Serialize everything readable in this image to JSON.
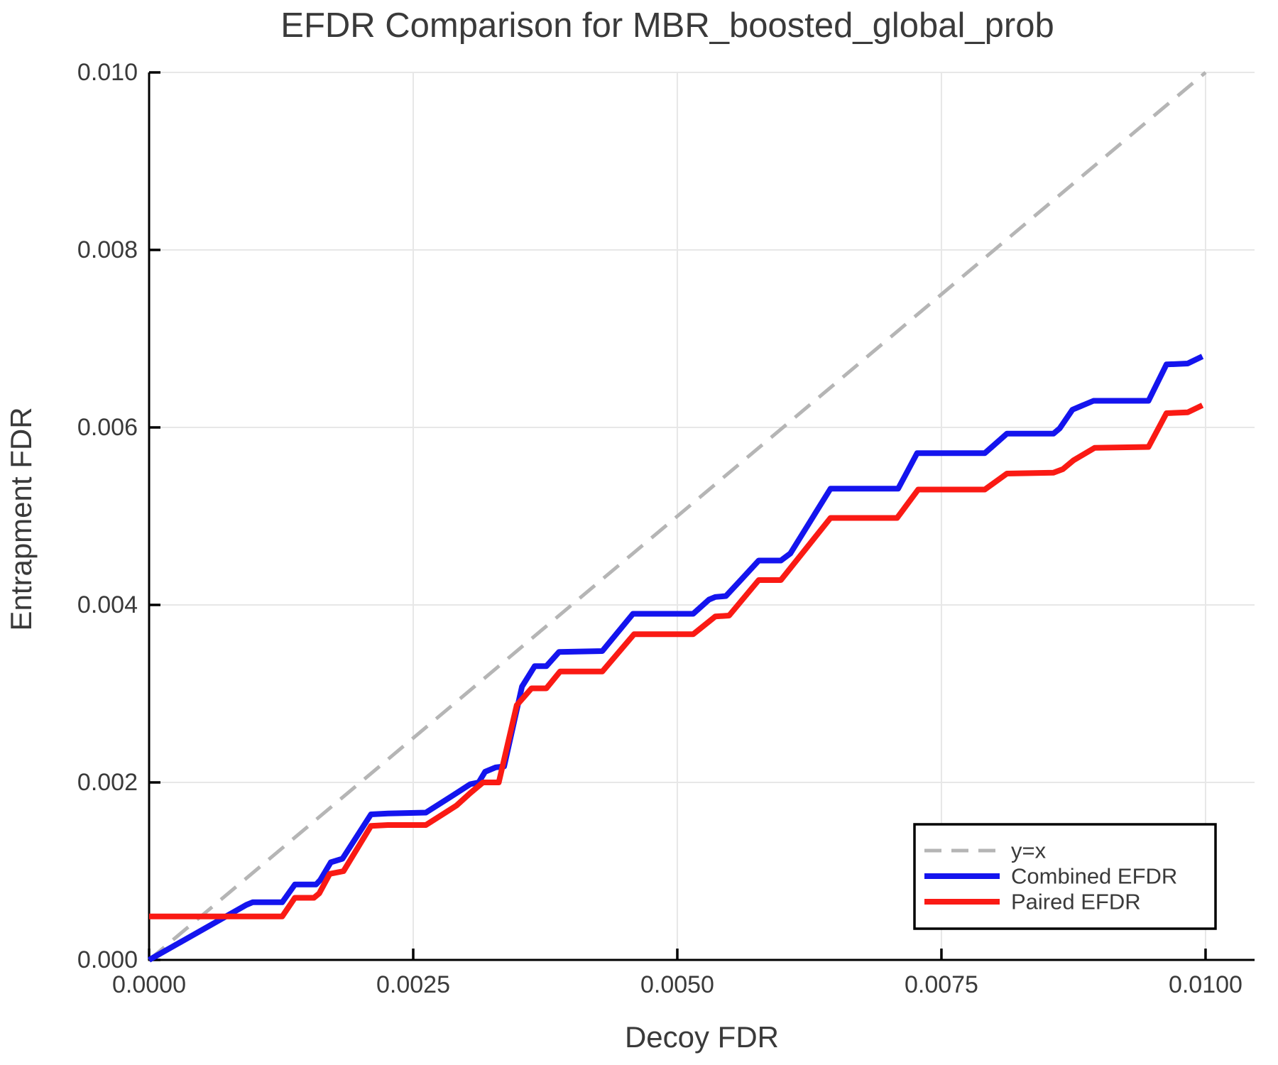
{
  "chart_data": {
    "type": "line",
    "title": "EFDR Comparison for MBR_boosted_global_prob",
    "xlabel": "Decoy FDR",
    "ylabel": "Entrapment FDR",
    "xlim": [
      0.0,
      0.010464
    ],
    "ylim": [
      0.0,
      0.01
    ],
    "grid": true,
    "legend_position": "bottom-right",
    "x_ticks": [
      {
        "v": 0.0,
        "label": "0.0000"
      },
      {
        "v": 0.0025,
        "label": "0.0025"
      },
      {
        "v": 0.005,
        "label": "0.0050"
      },
      {
        "v": 0.0075,
        "label": "0.0075"
      },
      {
        "v": 0.01,
        "label": "0.0100"
      }
    ],
    "y_ticks": [
      {
        "v": 0.0,
        "label": "0.000"
      },
      {
        "v": 0.002,
        "label": "0.002"
      },
      {
        "v": 0.004,
        "label": "0.004"
      },
      {
        "v": 0.006,
        "label": "0.006"
      },
      {
        "v": 0.008,
        "label": "0.008"
      },
      {
        "v": 0.01,
        "label": "0.010"
      }
    ],
    "series": [
      {
        "name": "y=x",
        "color": "#b5b5b5",
        "width": 5,
        "dash": "28,16",
        "points": [
          [
            0.0,
            0.0
          ],
          [
            0.01,
            0.01
          ]
        ]
      },
      {
        "name": "Combined EFDR",
        "color": "#1414ee",
        "width": 8,
        "dash": null,
        "points": [
          [
            0.0,
            0.0
          ],
          [
            0.00092,
            0.00062
          ],
          [
            0.00098,
            0.00065
          ],
          [
            0.00126,
            0.00065
          ],
          [
            0.00138,
            0.00085
          ],
          [
            0.00158,
            0.00085
          ],
          [
            0.00162,
            0.0009
          ],
          [
            0.00172,
            0.0011
          ],
          [
            0.00183,
            0.00114
          ],
          [
            0.0021,
            0.00164
          ],
          [
            0.00226,
            0.00165
          ],
          [
            0.00262,
            0.00166
          ],
          [
            0.00291,
            0.00188
          ],
          [
            0.00304,
            0.00198
          ],
          [
            0.00312,
            0.002
          ],
          [
            0.00318,
            0.00212
          ],
          [
            0.00328,
            0.00217
          ],
          [
            0.00336,
            0.00218
          ],
          [
            0.00353,
            0.00308
          ],
          [
            0.00365,
            0.00331
          ],
          [
            0.00376,
            0.00331
          ],
          [
            0.00388,
            0.00347
          ],
          [
            0.00429,
            0.00348
          ],
          [
            0.00458,
            0.0039
          ],
          [
            0.00515,
            0.0039
          ],
          [
            0.0053,
            0.00406
          ],
          [
            0.00536,
            0.00409
          ],
          [
            0.00546,
            0.0041
          ],
          [
            0.0056,
            0.00428
          ],
          [
            0.00577,
            0.0045
          ],
          [
            0.00598,
            0.0045
          ],
          [
            0.00607,
            0.00458
          ],
          [
            0.00645,
            0.00531
          ],
          [
            0.00709,
            0.00531
          ],
          [
            0.00727,
            0.00571
          ],
          [
            0.00791,
            0.00571
          ],
          [
            0.00812,
            0.00593
          ],
          [
            0.00856,
            0.00593
          ],
          [
            0.00862,
            0.00599
          ],
          [
            0.00874,
            0.0062
          ],
          [
            0.00894,
            0.0063
          ],
          [
            0.00946,
            0.0063
          ],
          [
            0.00963,
            0.00671
          ],
          [
            0.00983,
            0.00672
          ],
          [
            0.00997,
            0.0068
          ]
        ]
      },
      {
        "name": "Paired EFDR",
        "color": "#fa1a14",
        "width": 8,
        "dash": null,
        "points": [
          [
            0.0,
            0.00049
          ],
          [
            0.00126,
            0.00049
          ],
          [
            0.00138,
            0.0007
          ],
          [
            0.00156,
            0.0007
          ],
          [
            0.00161,
            0.00075
          ],
          [
            0.00171,
            0.00097
          ],
          [
            0.00184,
            0.001
          ],
          [
            0.0021,
            0.00151
          ],
          [
            0.00226,
            0.00152
          ],
          [
            0.00262,
            0.00152
          ],
          [
            0.00291,
            0.00174
          ],
          [
            0.00304,
            0.00188
          ],
          [
            0.00316,
            0.002
          ],
          [
            0.00331,
            0.002
          ],
          [
            0.00348,
            0.00287
          ],
          [
            0.00362,
            0.00306
          ],
          [
            0.00376,
            0.00306
          ],
          [
            0.00389,
            0.00325
          ],
          [
            0.00429,
            0.00325
          ],
          [
            0.00459,
            0.00367
          ],
          [
            0.00515,
            0.00367
          ],
          [
            0.00536,
            0.00387
          ],
          [
            0.00549,
            0.00388
          ],
          [
            0.00577,
            0.00428
          ],
          [
            0.00598,
            0.00428
          ],
          [
            0.00645,
            0.00498
          ],
          [
            0.00708,
            0.00498
          ],
          [
            0.00728,
            0.0053
          ],
          [
            0.00791,
            0.0053
          ],
          [
            0.00812,
            0.00548
          ],
          [
            0.00856,
            0.00549
          ],
          [
            0.00865,
            0.00553
          ],
          [
            0.00875,
            0.00563
          ],
          [
            0.00895,
            0.00577
          ],
          [
            0.00946,
            0.00578
          ],
          [
            0.00963,
            0.00616
          ],
          [
            0.00983,
            0.00617
          ],
          [
            0.00997,
            0.00625
          ]
        ]
      }
    ],
    "colors": {
      "text": "#3a3a3a",
      "spine": "#000000",
      "grid": "#e7e7e7",
      "legend_border": "#000000",
      "background": "#ffffff"
    }
  }
}
